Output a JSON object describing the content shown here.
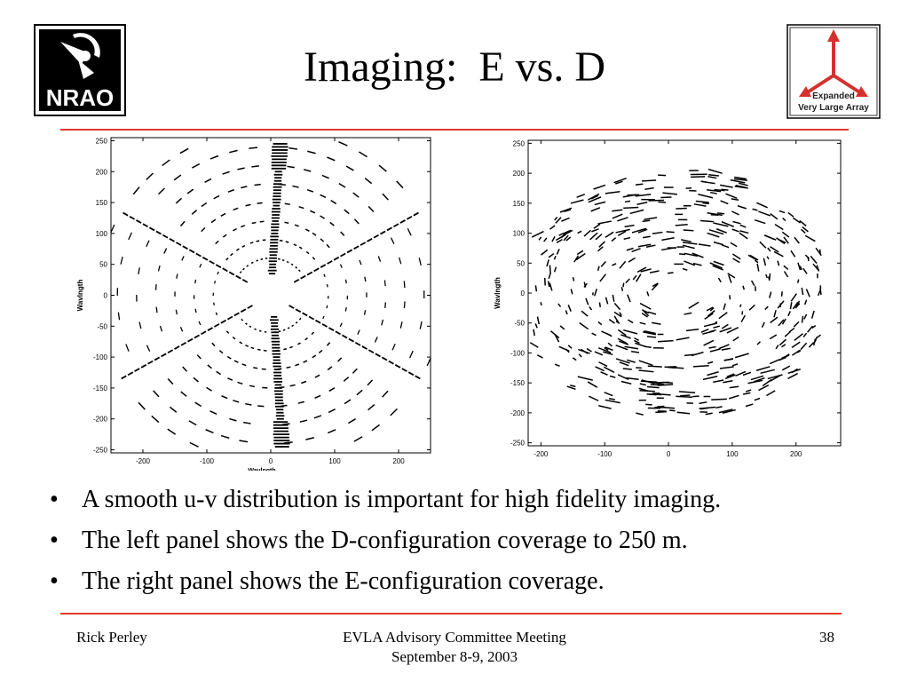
{
  "slide": {
    "title": "Imaging:  E vs. D",
    "logo_left_text": "NRAO",
    "logo_right_lines": [
      "Expanded",
      "Very Large Array"
    ],
    "bullets": [
      "A smooth u-v distribution is important for high fidelity imaging.",
      "The left panel shows the D-configuration coverage to 250 m.",
      "The right panel shows the E-configuration coverage."
    ],
    "bullet_symbol": "•",
    "footer": {
      "left": "Rick Perley",
      "center_line1": "EVLA Advisory Committee Meeting",
      "center_line2": "September 8-9, 2003",
      "page_number": "38"
    }
  },
  "colors": {
    "rule": "#e03a2a",
    "vla_arrow": "#d4312e",
    "ink": "#000000"
  },
  "chart_data": [
    {
      "type": "scatter",
      "xlabel": "Wavlngth",
      "ylabel": "Wavlngth",
      "xlim": [
        -250,
        250
      ],
      "ylim": [
        -255,
        255
      ],
      "xticks": [
        -200,
        -100,
        0,
        100,
        200
      ],
      "yticks": [
        250,
        200,
        150,
        100,
        50,
        0,
        -50,
        -100,
        -150,
        -200,
        -250
      ],
      "grid": false,
      "pattern": "six-arm snapshot coverage: three radial arms with concentric arc tracks"
    },
    {
      "type": "scatter",
      "xlabel": "",
      "ylabel": "Wavlngth",
      "xlim": [
        -220,
        270
      ],
      "ylim": [
        -255,
        255
      ],
      "xticks": [
        -200,
        -100,
        0,
        100,
        200
      ],
      "yticks": [
        250,
        200,
        150,
        100,
        50,
        0,
        -50,
        -100,
        -150,
        -200,
        -250
      ],
      "grid": false,
      "pattern": "filled elliptical coverage of short tracks with central hole"
    }
  ]
}
